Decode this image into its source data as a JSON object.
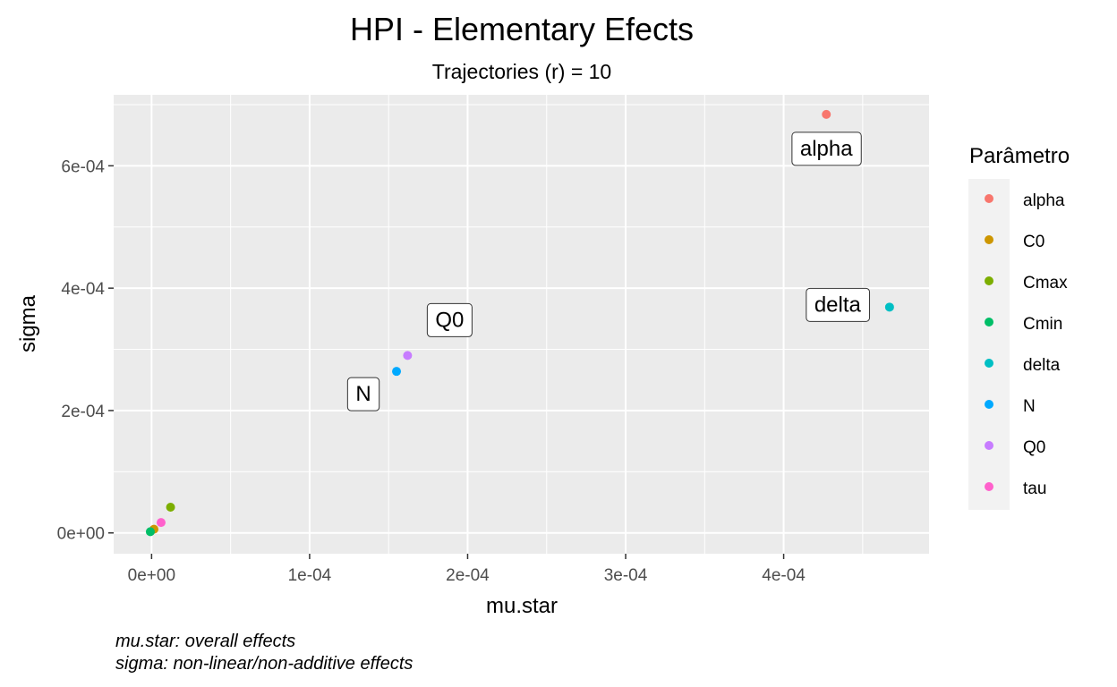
{
  "chart_data": {
    "type": "scatter",
    "title": "HPI - Elementary Efects",
    "subtitle": "Trajectories (r) = 10",
    "xlabel": "mu.star",
    "ylabel": "sigma",
    "xlim": [
      -2.4e-05,
      0.000492
    ],
    "ylim": [
      -3.4e-05,
      0.000716
    ],
    "x_ticks": [
      0,
      0.0001,
      0.0002,
      0.0003,
      0.0004
    ],
    "x_tick_labels": [
      "0e+00",
      "1e-04",
      "2e-04",
      "3e-04",
      "4e-04"
    ],
    "y_ticks": [
      0,
      0.0002,
      0.0004,
      0.0006
    ],
    "y_tick_labels": [
      "0e+00",
      "2e-04",
      "4e-04",
      "6e-04"
    ],
    "grid": true,
    "legend_title": "Parâmetro",
    "legend_position": "right",
    "series": [
      {
        "name": "alpha",
        "x": 0.000427,
        "y": 0.000684,
        "color": "#F8766D",
        "label": "alpha"
      },
      {
        "name": "C0",
        "x": 1.5e-06,
        "y": 6e-06,
        "color": "#CD9600",
        "label": ""
      },
      {
        "name": "Cmax",
        "x": 1.2e-05,
        "y": 4.2e-05,
        "color": "#7CAE00",
        "label": ""
      },
      {
        "name": "Cmin",
        "x": -8e-07,
        "y": 2e-06,
        "color": "#00BE67",
        "label": ""
      },
      {
        "name": "delta",
        "x": 0.000467,
        "y": 0.000369,
        "color": "#00BFC4",
        "label": "delta"
      },
      {
        "name": "N",
        "x": 0.000155,
        "y": 0.000264,
        "color": "#00A9FF",
        "label": "N"
      },
      {
        "name": "Q0",
        "x": 0.000162,
        "y": 0.00029,
        "color": "#C77CFF",
        "label": "Q0"
      },
      {
        "name": "tau",
        "x": 6e-06,
        "y": 1.7e-05,
        "color": "#FF61CC",
        "label": ""
      }
    ],
    "caption": [
      "mu.star: overall effects",
      "sigma: non-linear/non-additive effects"
    ]
  }
}
